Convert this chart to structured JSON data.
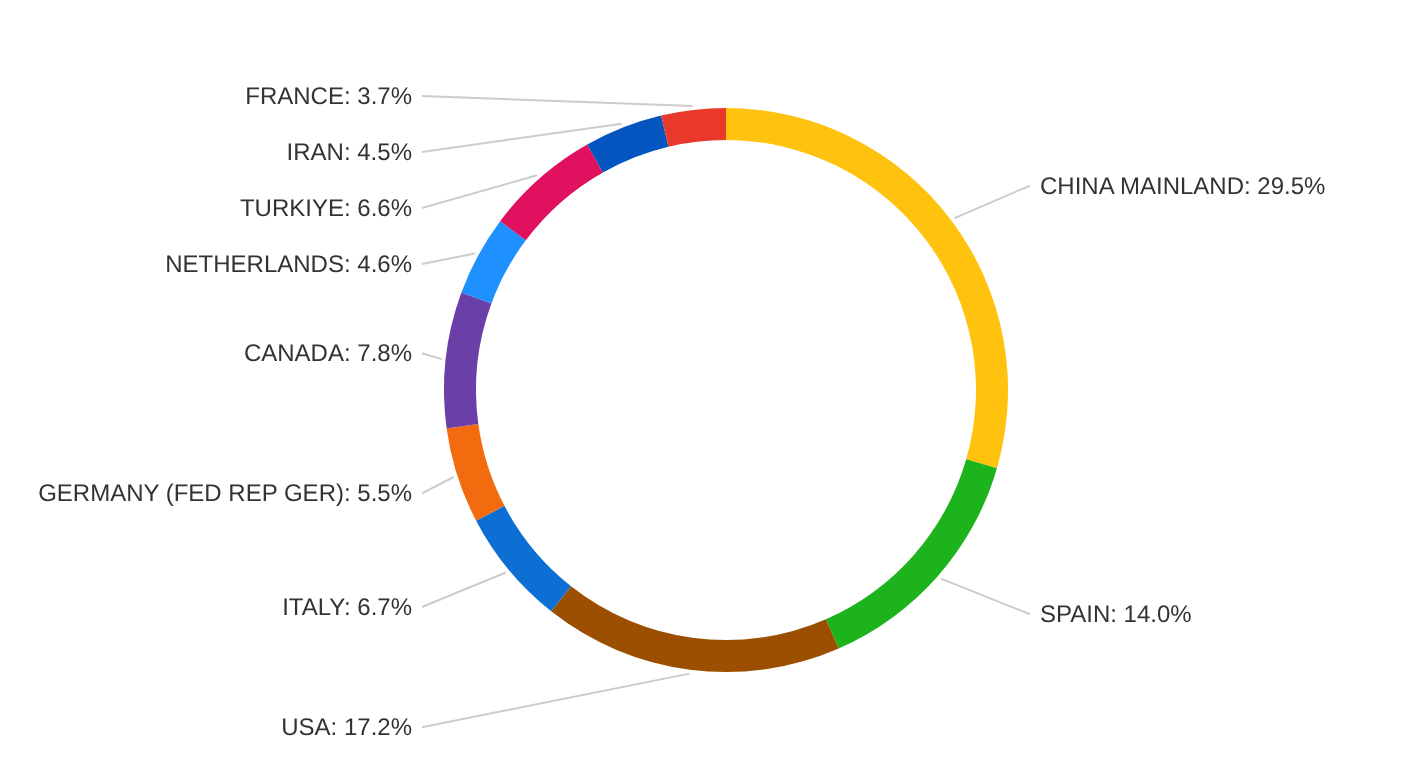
{
  "chart_data": {
    "type": "donut",
    "categories": [
      "CHINA MAINLAND",
      "SPAIN",
      "USA",
      "ITALY",
      "GERMANY (FED REP GER)",
      "CANADA",
      "NETHERLANDS",
      "TURKIYE",
      "IRAN",
      "FRANCE"
    ],
    "values": [
      29.5,
      14.0,
      17.2,
      6.7,
      5.5,
      7.8,
      4.6,
      6.6,
      4.5,
      3.7
    ],
    "value_labels": [
      "29.5%",
      "14.0%",
      "17.2%",
      "6.7%",
      "5.5%",
      "7.8%",
      "4.6%",
      "6.6%",
      "4.5%",
      "3.7%"
    ],
    "colors": [
      "#ffc20e",
      "#1db31d",
      "#9c4f00",
      "#0d6fd4",
      "#f26b0f",
      "#6a3fa8",
      "#1e90ff",
      "#e0115f",
      "#0455bf",
      "#e8392b"
    ]
  }
}
